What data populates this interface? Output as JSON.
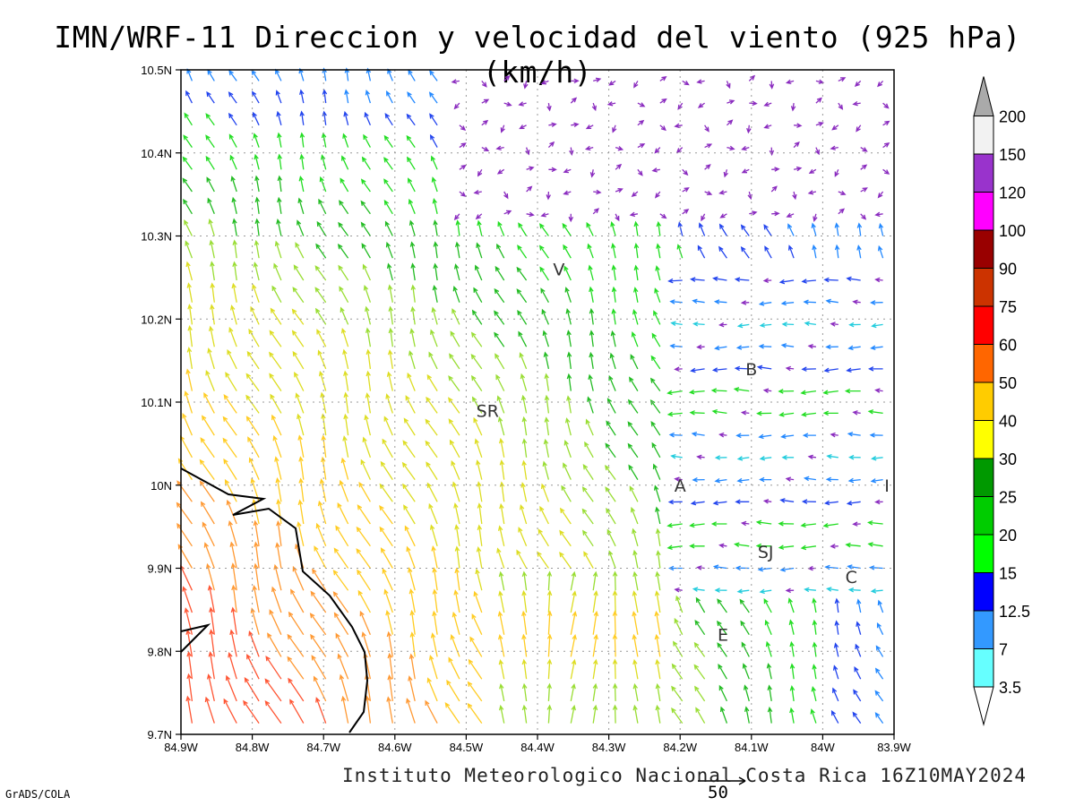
{
  "title": "IMN/WRF-11 Direccion y velocidad del viento (925 hPa)(km/h)",
  "credit": "Instituto Meteorologico Nacional Costa Rica 16Z10MAY2024",
  "software": "GrADS/COLA",
  "reference_vector": {
    "label": "50",
    "value": 50
  },
  "chart_data": {
    "type": "vector-field",
    "title": "IMN/WRF-11 Direccion y velocidad del viento (925 hPa)(km/h)",
    "xlim": [
      -84.9,
      -83.9
    ],
    "ylim": [
      9.7,
      10.5
    ],
    "x_ticks": [
      "84.9W",
      "84.8W",
      "84.7W",
      "84.6W",
      "84.5W",
      "84.4W",
      "84.3W",
      "84.2W",
      "84.1W",
      "84W",
      "83.9W"
    ],
    "y_ticks": [
      "9.7N",
      "9.8N",
      "9.9N",
      "10N",
      "10.1N",
      "10.2N",
      "10.3N",
      "10.4N",
      "10.5N"
    ],
    "grid": true,
    "places": [
      {
        "label": "V",
        "lon": -84.37,
        "lat": 10.26
      },
      {
        "label": "SR",
        "lon": -84.47,
        "lat": 10.09
      },
      {
        "label": "B",
        "lon": -84.1,
        "lat": 10.14
      },
      {
        "label": "A",
        "lon": -84.2,
        "lat": 10.0
      },
      {
        "label": "I",
        "lon": -83.91,
        "lat": 10.0
      },
      {
        "label": "SJ",
        "lon": -84.08,
        "lat": 9.92
      },
      {
        "label": "C",
        "lon": -83.96,
        "lat": 9.89
      },
      {
        "label": "E",
        "lon": -84.14,
        "lat": 9.82
      }
    ],
    "colorbar": {
      "levels": [
        "3.5",
        "7",
        "12.5",
        "15",
        "20",
        "25",
        "30",
        "40",
        "50",
        "60",
        "75",
        "90",
        "100",
        "120",
        "150",
        "200"
      ],
      "colors": [
        "#66ffff",
        "#3399ff",
        "#0000ff",
        "#00ff00",
        "#00cc00",
        "#009900",
        "#ffff00",
        "#ffcc00",
        "#ff6600",
        "#ff0000",
        "#cc3300",
        "#990000",
        "#ff00ff",
        "#9933cc",
        "#f2f2f2",
        "#aaaaaa"
      ]
    }
  }
}
